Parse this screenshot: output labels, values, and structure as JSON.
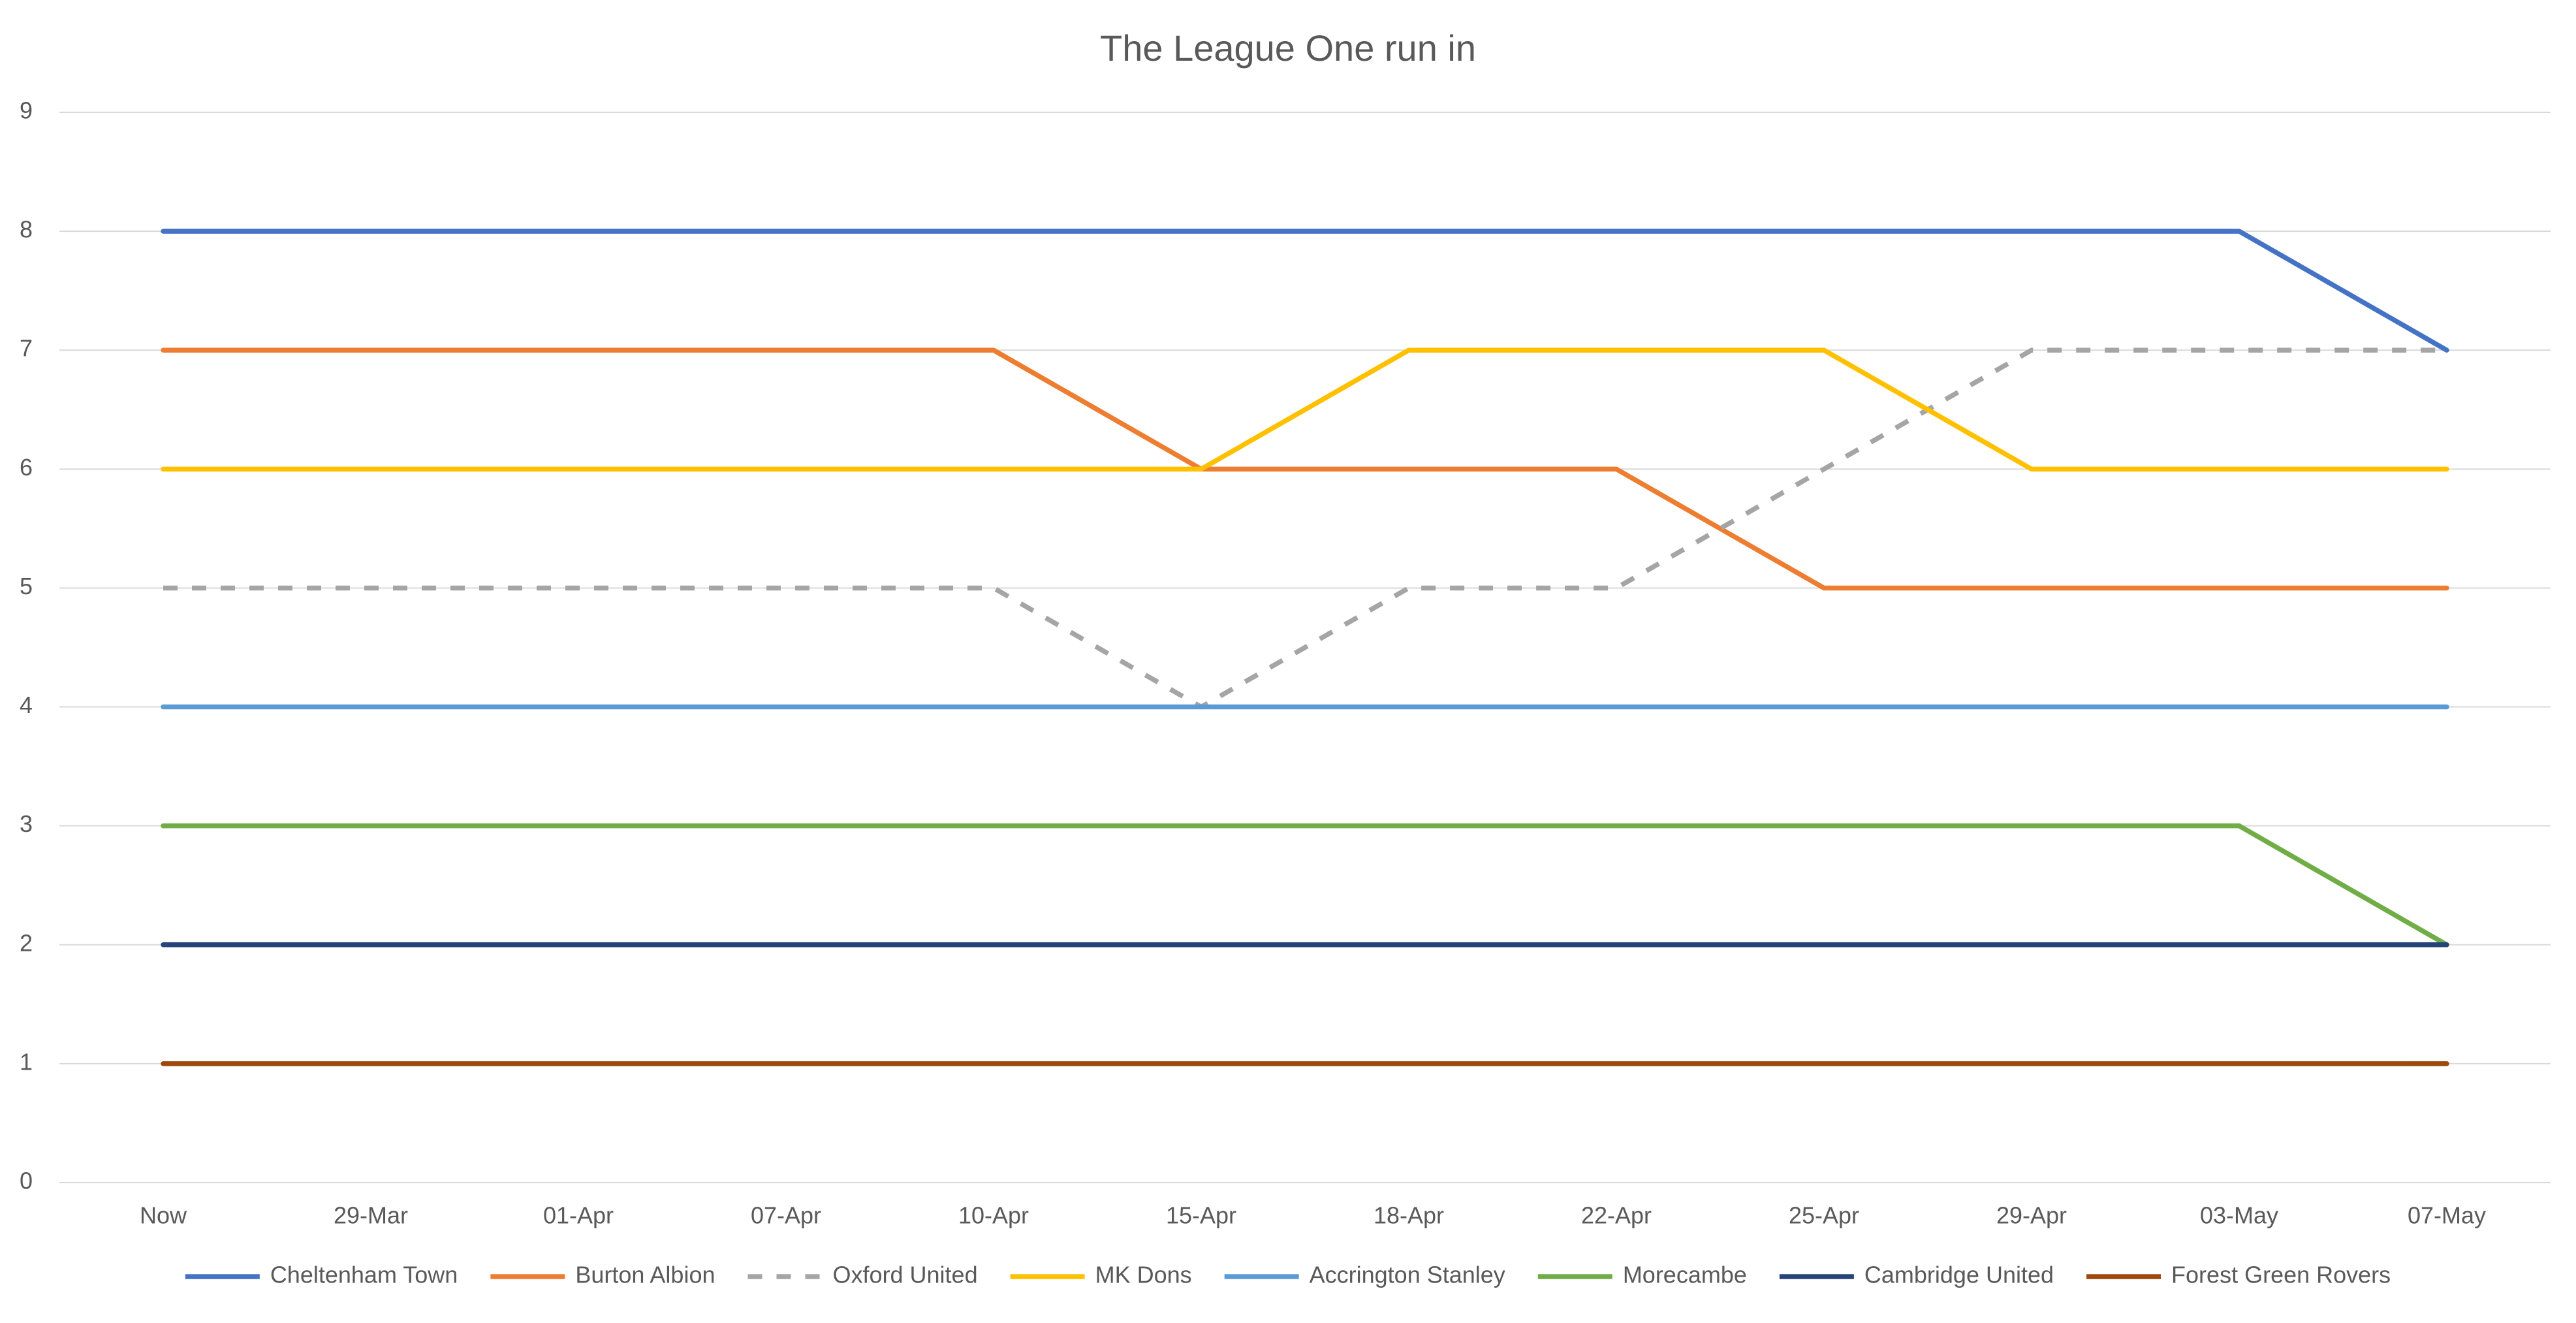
{
  "chart_data": {
    "type": "line",
    "title": "The League One run in",
    "categories": [
      "Now",
      "29-Mar",
      "01-Apr",
      "07-Apr",
      "10-Apr",
      "15-Apr",
      "18-Apr",
      "22-Apr",
      "25-Apr",
      "29-Apr",
      "03-May",
      "07-May"
    ],
    "series": [
      {
        "name": "Cheltenham Town",
        "color": "#4472c4",
        "values": [
          8,
          8,
          8,
          8,
          8,
          8,
          8,
          8,
          8,
          8,
          8,
          7
        ]
      },
      {
        "name": "Burton Albion",
        "color": "#ed7d31",
        "values": [
          7,
          7,
          7,
          7,
          7,
          6,
          6,
          6,
          5,
          5,
          5,
          5
        ]
      },
      {
        "name": "Oxford United",
        "color": "#a5a5a5",
        "dashed": true,
        "values": [
          5,
          5,
          5,
          5,
          5,
          4,
          5,
          5,
          6,
          7,
          7,
          7
        ]
      },
      {
        "name": "MK Dons",
        "color": "#ffc000",
        "values": [
          6,
          6,
          6,
          6,
          6,
          6,
          7,
          7,
          7,
          6,
          6,
          6
        ]
      },
      {
        "name": "Accrington Stanley",
        "color": "#5b9bd5",
        "values": [
          4,
          4,
          4,
          4,
          4,
          4,
          4,
          4,
          4,
          4,
          4,
          4
        ]
      },
      {
        "name": "Morecambe",
        "color": "#70ad47",
        "values": [
          3,
          3,
          3,
          3,
          3,
          3,
          3,
          3,
          3,
          3,
          3,
          2
        ]
      },
      {
        "name": "Cambridge United",
        "color": "#264478",
        "values": [
          2,
          2,
          2,
          2,
          2,
          2,
          2,
          2,
          2,
          2,
          2,
          2
        ]
      },
      {
        "name": "Forest Green Rovers",
        "color": "#9e480e",
        "values": [
          1,
          1,
          1,
          1,
          1,
          1,
          1,
          1,
          1,
          1,
          1,
          1
        ]
      }
    ],
    "ylim": [
      0,
      9
    ],
    "yticks": [
      0,
      1,
      2,
      3,
      4,
      5,
      6,
      7,
      8,
      9
    ],
    "grid": true,
    "legend": "bottom"
  }
}
